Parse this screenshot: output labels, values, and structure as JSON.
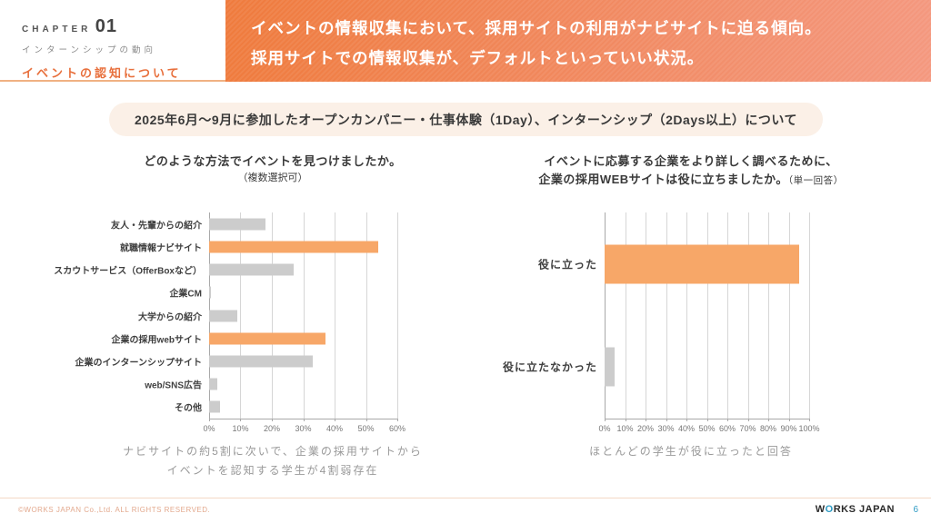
{
  "chapter": {
    "label": "CHAPTER",
    "number": "01",
    "subtitle": "インターンシップの動向",
    "section": "イベントの認知について"
  },
  "banner": {
    "line1": "イベントの情報収集において、採用サイトの利用がナビサイトに迫る傾向。",
    "line2": "採用サイトでの情報収集が、デフォルトといっていい状況。"
  },
  "subtitle_pill": "2025年6月〜9月に参加したオープンカンパニー・仕事体験（1Day）、インターンシップ（2Days以上）について",
  "charts": {
    "left": {
      "title_line1": "どのような方法でイベントを見つけましたか。",
      "title_line2": "（複数選択可）"
    },
    "right": {
      "title_line1": "イベントに応募する企業をより詳しく調べるために、",
      "title_line2": "企業の採用WEBサイトは役に立ちましたか。",
      "note": "（単一回答）"
    }
  },
  "chart_data": [
    {
      "type": "bar",
      "orientation": "horizontal",
      "title": "どのような方法でイベントを見つけましたか。（複数選択可）",
      "categories": [
        "友人・先輩からの紹介",
        "就職情報ナビサイト",
        "スカウトサービス（OfferBoxなど）",
        "企業CM",
        "大学からの紹介",
        "企業の採用webサイト",
        "企業のインターンシップサイト",
        "web/SNS広告",
        "その他"
      ],
      "values": [
        18,
        54,
        27,
        0.7,
        9,
        37,
        33,
        2.5,
        3.5
      ],
      "unit": "%",
      "highlighted_indexes": [
        1,
        5
      ],
      "xlim": [
        0,
        60
      ],
      "tick_step": 10,
      "bar_thickness_px": 13,
      "grid": true,
      "legend": false
    },
    {
      "type": "bar",
      "orientation": "horizontal",
      "title": "イベントに応募する企業をより詳しく調べるために、企業の採用WEBサイトは役に立ちましたか。（単一回答）",
      "categories": [
        "役に立った",
        "役に立たなかった"
      ],
      "values": [
        95,
        5
      ],
      "unit": "%",
      "highlighted_indexes": [
        0
      ],
      "xlim": [
        0,
        100
      ],
      "tick_step": 10,
      "bar_thickness_px": 43,
      "grid": true,
      "legend": false
    }
  ],
  "captions": {
    "left_line1": "ナビサイトの約5割に次いで、企業の採用サイトから",
    "left_line2": "イベントを認知する学生が4割弱存在",
    "right": "ほとんどの学生が役に立ったと回答"
  },
  "footer": {
    "copyright": "©WORKS JAPAN Co.,Ltd. ALL RIGHTS RESERVED.",
    "logo_w": "W",
    "logo_o": "O",
    "logo_rest": "RKS JAPAN",
    "page_number": "6"
  },
  "colors": {
    "accent_orange": "#e8703d",
    "banner_gradient_start": "#ef7b3d",
    "banner_gradient_end": "#f4987f",
    "bar_highlight": "#f7a768",
    "bar_default": "#cccccc",
    "pill_bg": "#fbf0e7",
    "caption_gray": "#999999",
    "footer_peach": "#e3a98e",
    "page_blue": "#2e9bc4"
  }
}
